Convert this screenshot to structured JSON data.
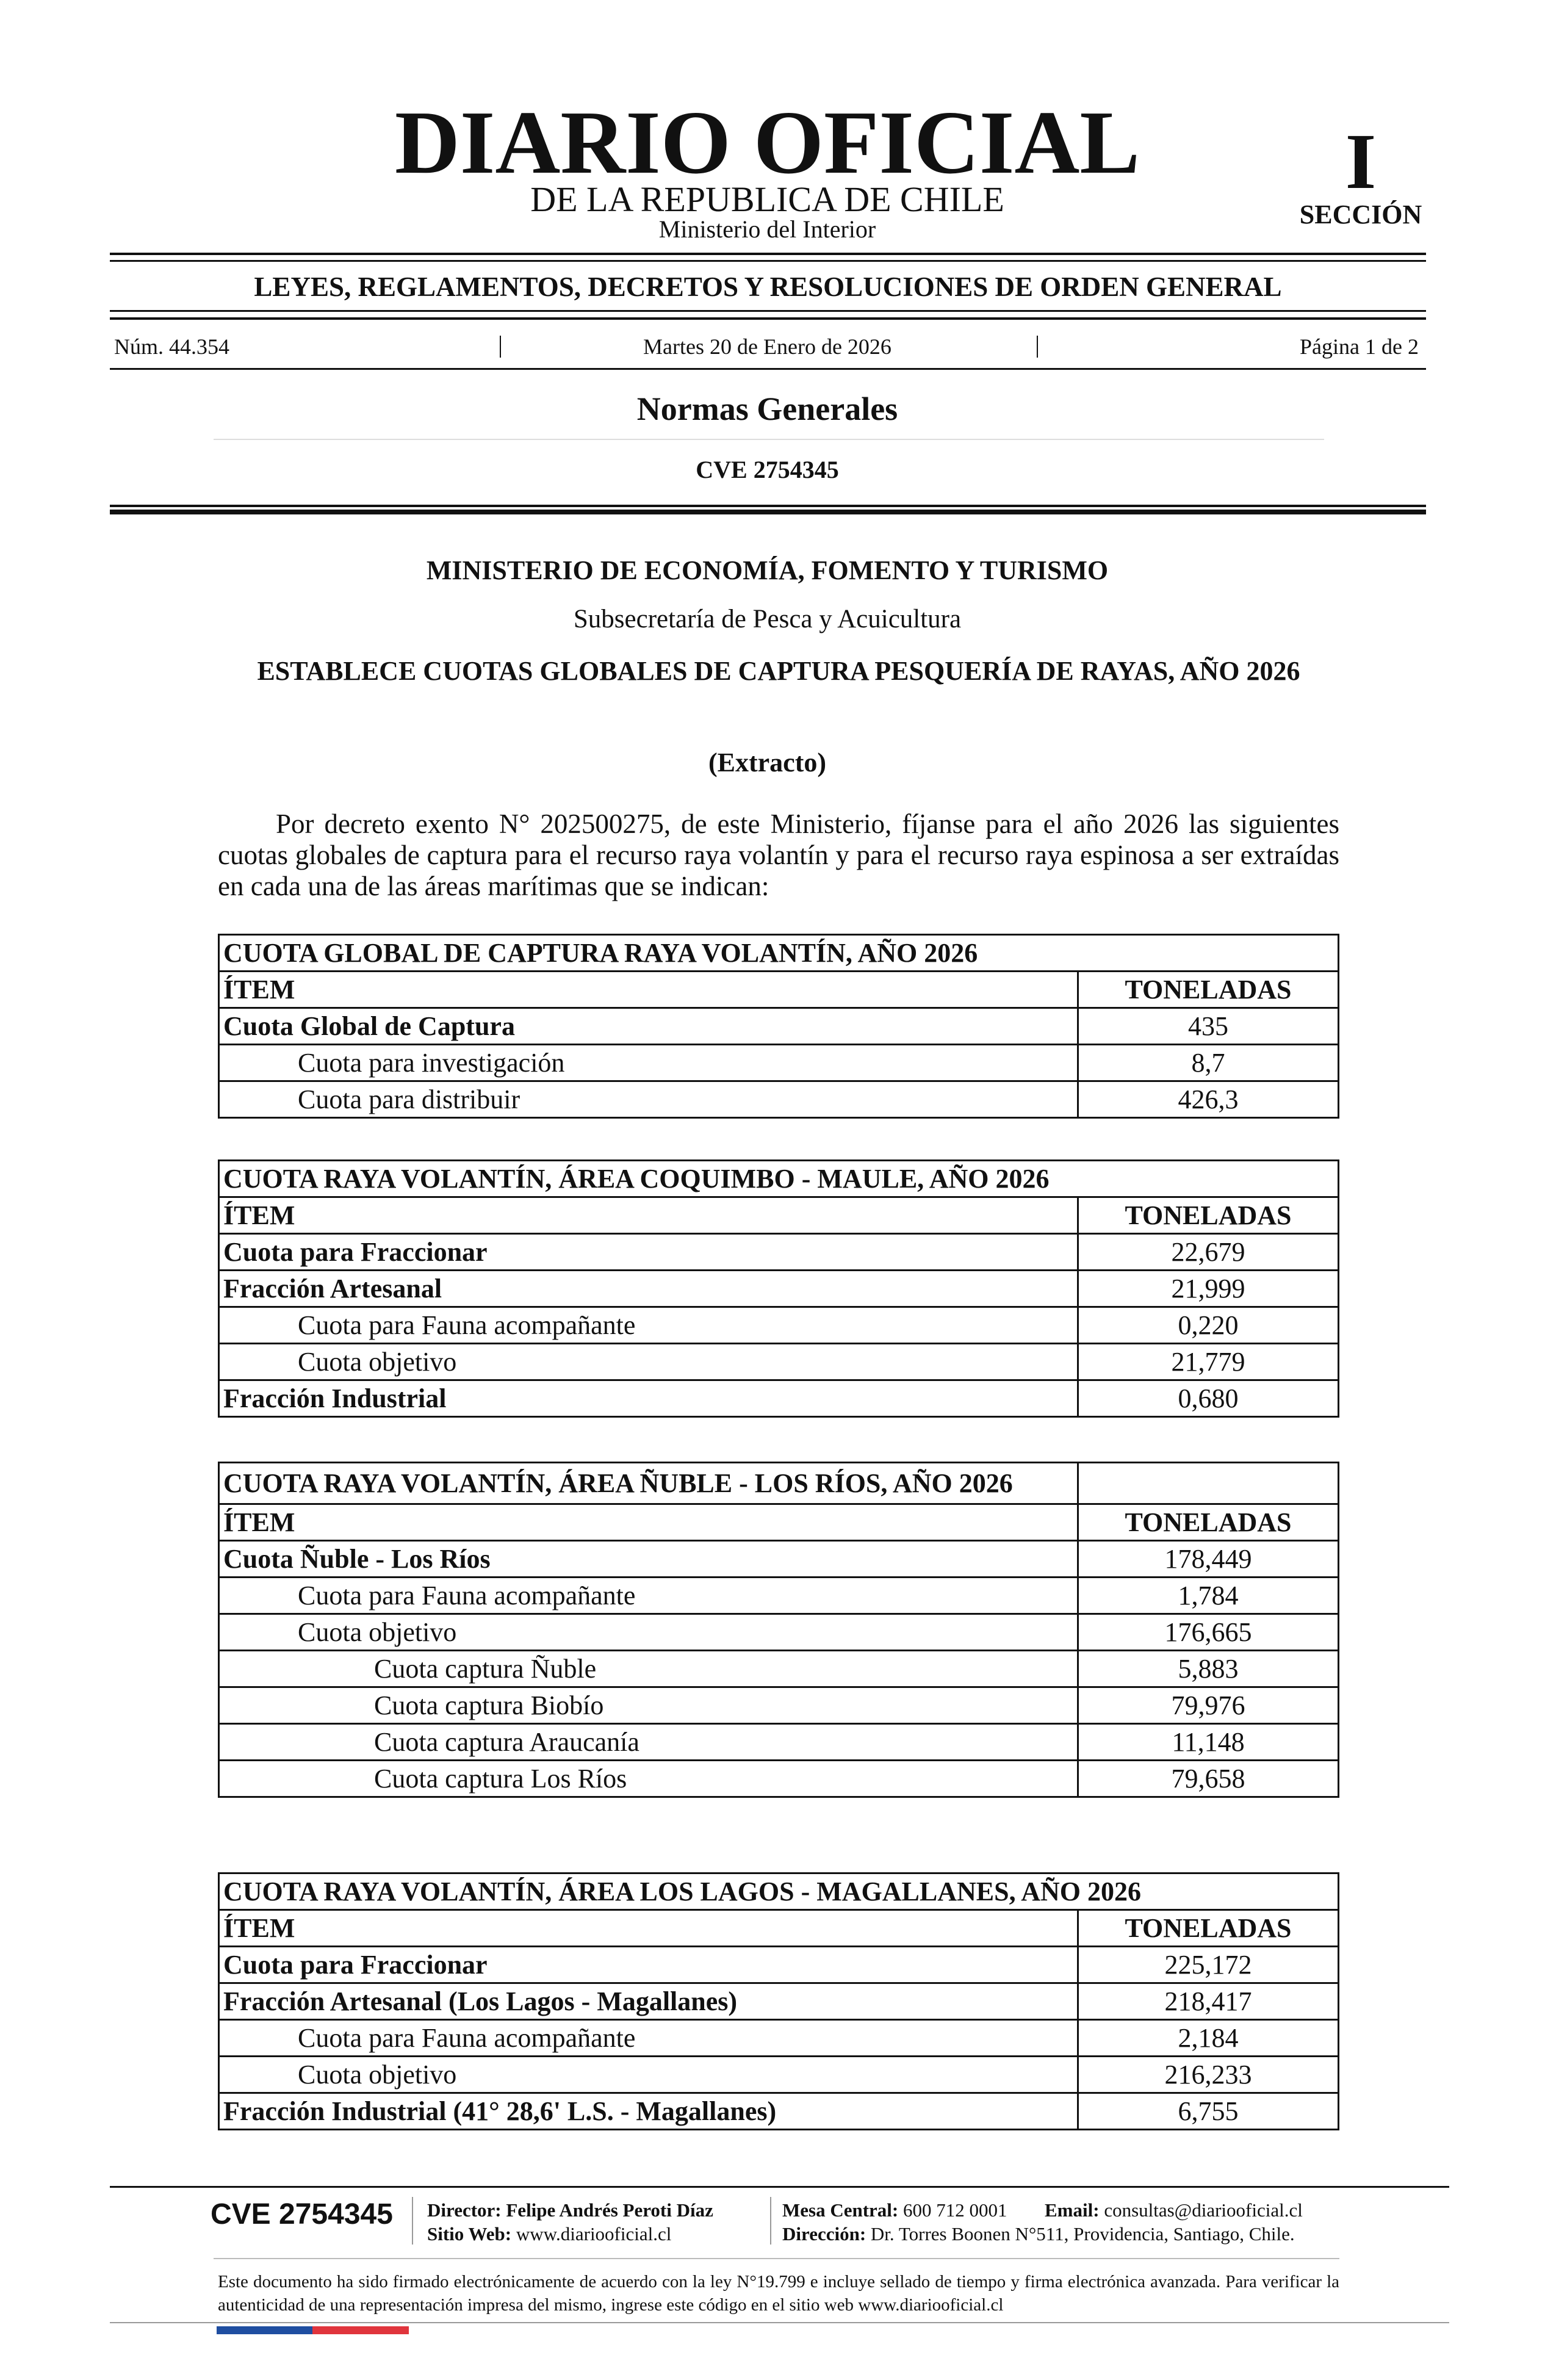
{
  "header": {
    "title": "DIARIO OFICIAL",
    "subtitle": "DE LA REPUBLICA DE CHILE",
    "ministry": "Ministerio del Interior",
    "section_number": "I",
    "section_label": "SECCIÓN",
    "category": "LEYES, REGLAMENTOS, DECRETOS Y RESOLUCIONES DE ORDEN GENERAL",
    "issue": "Núm. 44.354",
    "date": "Martes 20 de Enero de 2026",
    "page": "Página 1 de 2"
  },
  "section": {
    "title": "Normas Generales",
    "cve": "CVE 2754345"
  },
  "document": {
    "ministry": "MINISTERIO DE ECONOMÍA, FOMENTO Y TURISMO",
    "subsecretary": "Subsecretaría de Pesca y Acuicultura",
    "title": "ESTABLECE CUOTAS GLOBALES DE CAPTURA PESQUERÍA DE RAYAS, AÑO 2026",
    "note": "(Extracto)",
    "body": "Por decreto exento N° 202500275, de este Ministerio, fíjanse para el año 2026 las siguientes cuotas globales de captura para el recurso raya volantín y para el recurso raya espinosa a ser extraídas en cada una de las áreas marítimas que se indican:"
  },
  "tables": [
    {
      "title": "CUOTA GLOBAL DE CAPTURA RAYA VOLANTÍN, AÑO 2026",
      "columns": [
        "ÍTEM",
        "TONELADAS"
      ],
      "rows": [
        [
          "Cuota Global de Captura",
          "435"
        ],
        [
          "Cuota para investigación",
          "8,7"
        ],
        [
          "Cuota para distribuir",
          "426,3"
        ]
      ]
    },
    {
      "title": "CUOTA RAYA VOLANTÍN, ÁREA COQUIMBO - MAULE, AÑO 2026",
      "columns": [
        "ÍTEM",
        "TONELADAS"
      ],
      "rows": [
        [
          "Cuota para Fraccionar",
          "22,679"
        ],
        [
          "Fracción Artesanal",
          "21,999"
        ],
        [
          "Cuota para Fauna acompañante",
          "0,220"
        ],
        [
          "Cuota objetivo",
          "21,779"
        ],
        [
          "Fracción Industrial",
          "0,680"
        ]
      ]
    },
    {
      "title": "CUOTA RAYA VOLANTÍN, ÁREA ÑUBLE - LOS RÍOS, AÑO 2026",
      "columns": [
        "ÍTEM",
        "TONELADAS"
      ],
      "rows": [
        [
          "Cuota Ñuble - Los Ríos",
          "178,449"
        ],
        [
          "Cuota para Fauna acompañante",
          "1,784"
        ],
        [
          "Cuota objetivo",
          "176,665"
        ],
        [
          "Cuota captura Ñuble",
          "5,883"
        ],
        [
          "Cuota captura Biobío",
          "79,976"
        ],
        [
          "Cuota captura Araucanía",
          "11,148"
        ],
        [
          "Cuota captura Los Ríos",
          "79,658"
        ]
      ]
    },
    {
      "title": "CUOTA RAYA VOLANTÍN, ÁREA LOS LAGOS - MAGALLANES, AÑO 2026",
      "columns": [
        "ÍTEM",
        "TONELADAS"
      ],
      "rows": [
        [
          "Cuota para Fraccionar",
          "225,172"
        ],
        [
          "Fracción Artesanal (Los Lagos - Magallanes)",
          "218,417"
        ],
        [
          "Cuota para Fauna acompañante",
          "2,184"
        ],
        [
          "Cuota objetivo",
          "216,233"
        ],
        [
          "Fracción Industrial (41° 28,6' L.S. - Magallanes)",
          "6,755"
        ]
      ]
    }
  ],
  "footer": {
    "cve": "CVE 2754345",
    "director": "Director: Felipe Andrés Peroti Díaz",
    "web_label": "Sitio Web:",
    "web": "www.diariooficial.cl",
    "phone_label": "Mesa Central:",
    "phone": "600 712 0001",
    "email_label": "Email:",
    "email": "consultas@diariooficial.cl",
    "address_label": "Dirección:",
    "address": "Dr. Torres Boonen N°511, Providencia, Santiago, Chile.",
    "disclaimer": "Este documento ha sido firmado electrónicamente de acuerdo con la ley N°19.799 e incluye sellado de tiempo y firma electrónica avanzada. Para verificar la autenticidad de una representación impresa del mismo, ingrese este código en el sitio web www.diariooficial.cl"
  }
}
